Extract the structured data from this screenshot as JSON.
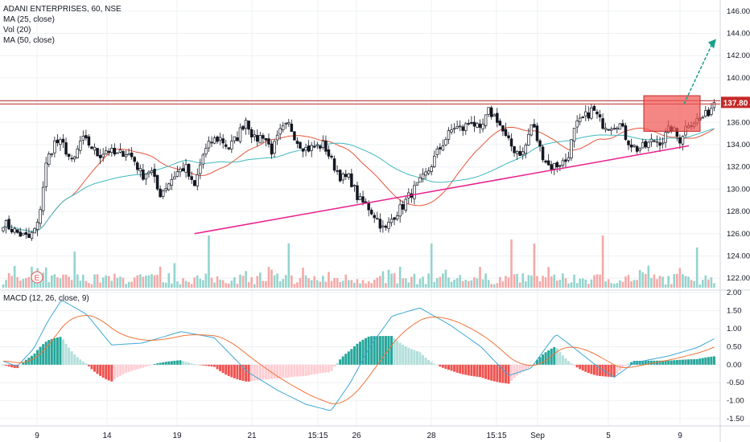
{
  "symbol_line": "ADANI ENTERPRISES, 60, NSE",
  "indicators": [
    "MA (25, close)",
    "Vol (20)",
    "MA (50, close)"
  ],
  "macd_label": "MACD (12, 26, close, 9)",
  "price_badge": "137.80",
  "earnings_marker": "E",
  "colors": {
    "up": "#26a69a",
    "down": "#ef5350",
    "vol_up": "#93d4ce",
    "vol_down": "#f4a9a7",
    "ma25": "#e8553b",
    "ma50": "#3fb8c0",
    "resistance": "#c62828",
    "support": "#e91e8c",
    "arrow": "#1a9e8a",
    "macd_line": "#3fa7d6",
    "signal_line": "#f0743a",
    "hist_up_strong": "#26a69a",
    "hist_up_weak": "#b2dfdb",
    "hist_down_strong": "#ef5350",
    "hist_down_weak": "#ffcdd2",
    "grid": "#eef0f3",
    "box_fill": "rgba(239,83,80,0.7)"
  },
  "chart_data": {
    "type": "candlestick",
    "price_axis_ticks": [
      "146.00",
      "144.00",
      "142.00",
      "140.00",
      "137.80",
      "136.00",
      "134.00",
      "132.00",
      "130.00",
      "128.00",
      "126.00",
      "124.00",
      "122.00"
    ],
    "macd_axis_ticks": [
      "2.00",
      "1.50",
      "1.00",
      "0.50",
      "0.00",
      "-0.50",
      "-1.00",
      "-1.50"
    ],
    "x_tick_labels": [
      "9",
      "14",
      "19",
      "21",
      "15:15",
      "26",
      "28",
      "15:15",
      "Sep",
      "5",
      "9"
    ],
    "price_ylim": [
      121,
      147
    ],
    "macd_ylim": [
      -1.7,
      2.05
    ],
    "resistance_level": 137.8,
    "support_line": [
      {
        "bar": 0.27,
        "price": 126.0
      },
      {
        "bar": 0.99,
        "price": 133.9
      }
    ],
    "target_arrow": {
      "from": 137.8,
      "to": 143.5
    },
    "highlight_box": {
      "price_low": 135.2,
      "price_high": 138.4
    },
    "anchors": [
      [
        0,
        127.0
      ],
      [
        1,
        126.4
      ],
      [
        2,
        125.9
      ],
      [
        3,
        125.6
      ],
      [
        4,
        126.8
      ],
      [
        5,
        132.5
      ],
      [
        6,
        134.3
      ],
      [
        7,
        133.9
      ],
      [
        8,
        132.2
      ],
      [
        9,
        134.5
      ],
      [
        10,
        134.0
      ],
      [
        11,
        133.0
      ],
      [
        12,
        133.6
      ],
      [
        13,
        133.0
      ],
      [
        14,
        133.4
      ],
      [
        15,
        132.8
      ],
      [
        16,
        131.2
      ],
      [
        17,
        131.8
      ],
      [
        18,
        129.5
      ],
      [
        19,
        130.5
      ],
      [
        20,
        131.5
      ],
      [
        21,
        132.0
      ],
      [
        22,
        130.0
      ],
      [
        23,
        133.0
      ],
      [
        24,
        134.3
      ],
      [
        25,
        134.6
      ],
      [
        26,
        133.7
      ],
      [
        27,
        134.7
      ],
      [
        28,
        136.3
      ],
      [
        29,
        134.4
      ],
      [
        30,
        134.9
      ],
      [
        31,
        133.4
      ],
      [
        32,
        135.2
      ],
      [
        33,
        135.8
      ],
      [
        34,
        134.2
      ],
      [
        35,
        133.6
      ],
      [
        36,
        133.8
      ],
      [
        37,
        134.0
      ],
      [
        38,
        132.3
      ],
      [
        39,
        131.0
      ],
      [
        40,
        131.0
      ],
      [
        41,
        129.0
      ],
      [
        42,
        128.5
      ],
      [
        43,
        127.5
      ],
      [
        44,
        126.2
      ],
      [
        45,
        127.6
      ],
      [
        46,
        128.4
      ],
      [
        47,
        129.6
      ],
      [
        48,
        130.5
      ],
      [
        49,
        131.6
      ],
      [
        50,
        133.2
      ],
      [
        51,
        134.5
      ],
      [
        52,
        135.6
      ],
      [
        53,
        135.4
      ],
      [
        54,
        136.2
      ],
      [
        55,
        135.1
      ],
      [
        56,
        137.0
      ],
      [
        57,
        136.3
      ],
      [
        58,
        134.5
      ],
      [
        59,
        133.5
      ],
      [
        60,
        133.2
      ],
      [
        61,
        136.0
      ],
      [
        62,
        133.4
      ],
      [
        63,
        132.0
      ],
      [
        64,
        132.2
      ],
      [
        65,
        132.6
      ],
      [
        66,
        135.6
      ],
      [
        67,
        136.4
      ],
      [
        68,
        137.2
      ],
      [
        69,
        135.9
      ],
      [
        70,
        135.7
      ],
      [
        71,
        136.0
      ],
      [
        72,
        134.4
      ],
      [
        73,
        133.6
      ],
      [
        74,
        133.8
      ],
      [
        75,
        134.4
      ],
      [
        76,
        134.3
      ],
      [
        77,
        135.6
      ],
      [
        78,
        134.4
      ],
      [
        79,
        136.0
      ],
      [
        80,
        136.2
      ],
      [
        81,
        136.6
      ],
      [
        82,
        137.7
      ]
    ],
    "volume_spikes": [
      [
        25,
        9
      ],
      [
        72,
        13
      ],
      [
        100,
        11
      ],
      [
        150,
        11
      ],
      [
        178,
        12
      ],
      [
        186,
        11
      ],
      [
        210,
        13
      ],
      [
        243,
        10
      ]
    ],
    "macd_anchors": [
      [
        0,
        0.1
      ],
      [
        10,
        -0.05
      ],
      [
        22,
        0.45
      ],
      [
        32,
        1.2
      ],
      [
        42,
        1.8
      ],
      [
        60,
        1.4
      ],
      [
        78,
        0.55
      ],
      [
        100,
        0.6
      ],
      [
        128,
        0.92
      ],
      [
        152,
        0.75
      ],
      [
        176,
        -0.2
      ],
      [
        198,
        -0.72
      ],
      [
        218,
        -1.1
      ],
      [
        236,
        -1.28
      ],
      [
        250,
        -0.5
      ],
      [
        264,
        0.5
      ],
      [
        280,
        1.35
      ],
      [
        300,
        1.58
      ],
      [
        322,
        1.1
      ],
      [
        344,
        0.5
      ],
      [
        364,
        -0.3
      ],
      [
        380,
        -0.1
      ],
      [
        398,
        0.85
      ],
      [
        410,
        0.5
      ],
      [
        428,
        -0.05
      ],
      [
        440,
        -0.35
      ],
      [
        454,
        0.05
      ],
      [
        480,
        0.25
      ],
      [
        500,
        0.48
      ],
      [
        512,
        0.72
      ]
    ]
  }
}
